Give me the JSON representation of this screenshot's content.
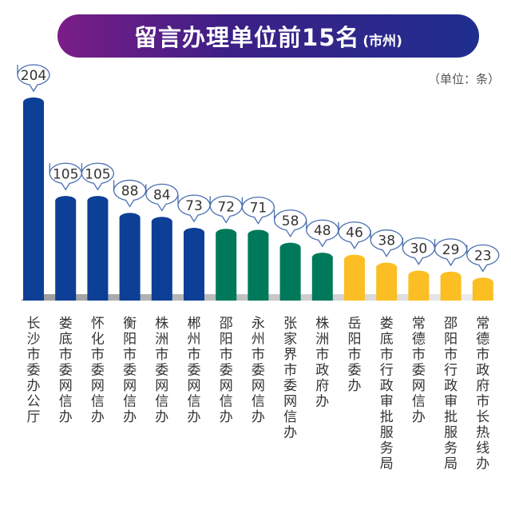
{
  "title": "留言办理单位前15名",
  "subtitle": "(市州)",
  "unit_note": "（单位：条）",
  "chart_data": {
    "type": "bar",
    "title": "留言办理单位前15名",
    "categories": [
      "长沙市委办公厅",
      "娄底市委网信办",
      "怀化市委网信办",
      "衡阳市委网信办",
      "株洲市委网信办",
      "郴州市委网信办",
      "邵阳市委网信办",
      "永州市委网信办",
      "张家界市委网信办",
      "株洲市政府办",
      "岳阳市委办",
      "娄底市行政审批服务局",
      "常德市委网信办",
      "邵阳市行政审批服务局",
      "常德市政府市长热线办"
    ],
    "values": [
      204,
      105,
      105,
      88,
      84,
      73,
      72,
      71,
      58,
      48,
      46,
      38,
      30,
      29,
      23
    ],
    "colors": [
      "#0d3f96",
      "#0d3f96",
      "#0d3f96",
      "#0d3f96",
      "#0d3f96",
      "#0d3f96",
      "#00785a",
      "#00785a",
      "#00785a",
      "#00785a",
      "#fbbf24",
      "#fbbf24",
      "#fbbf24",
      "#fbbf24",
      "#fbbf24"
    ],
    "ylim": [
      0,
      204
    ],
    "grid": false,
    "legend": "none"
  }
}
